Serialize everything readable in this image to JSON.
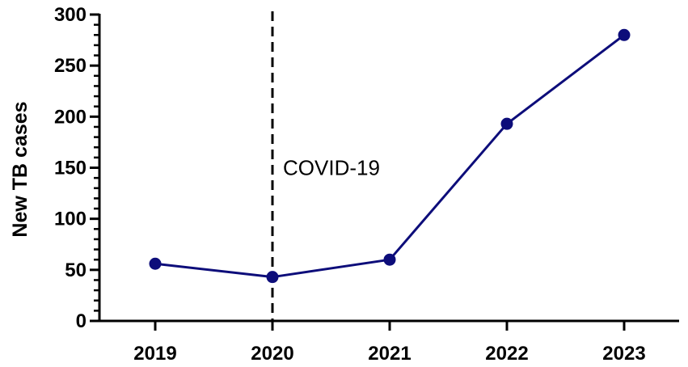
{
  "chart_data": {
    "type": "line",
    "title": "",
    "xlabel": "",
    "ylabel": "New TB cases",
    "categories": [
      "2019",
      "2020",
      "2021",
      "2022",
      "2023"
    ],
    "series": [
      {
        "values": [
          56,
          43,
          60,
          193,
          280
        ],
        "color": "#0d0d7a"
      }
    ],
    "ylim": [
      0,
      300
    ],
    "yticks": [
      "0",
      "50",
      "100",
      "150",
      "200",
      "250",
      "300"
    ],
    "ytick_values": [
      0,
      50,
      100,
      150,
      200,
      250,
      300
    ],
    "grid": false,
    "legend": "none",
    "annotations": [
      {
        "text": "COVID-19",
        "at_category": "2020",
        "style": "dashed vertical line"
      }
    ],
    "colors": {
      "series": "#0d0d7a",
      "axis": "#000000",
      "annotation_line": "#000000"
    }
  }
}
